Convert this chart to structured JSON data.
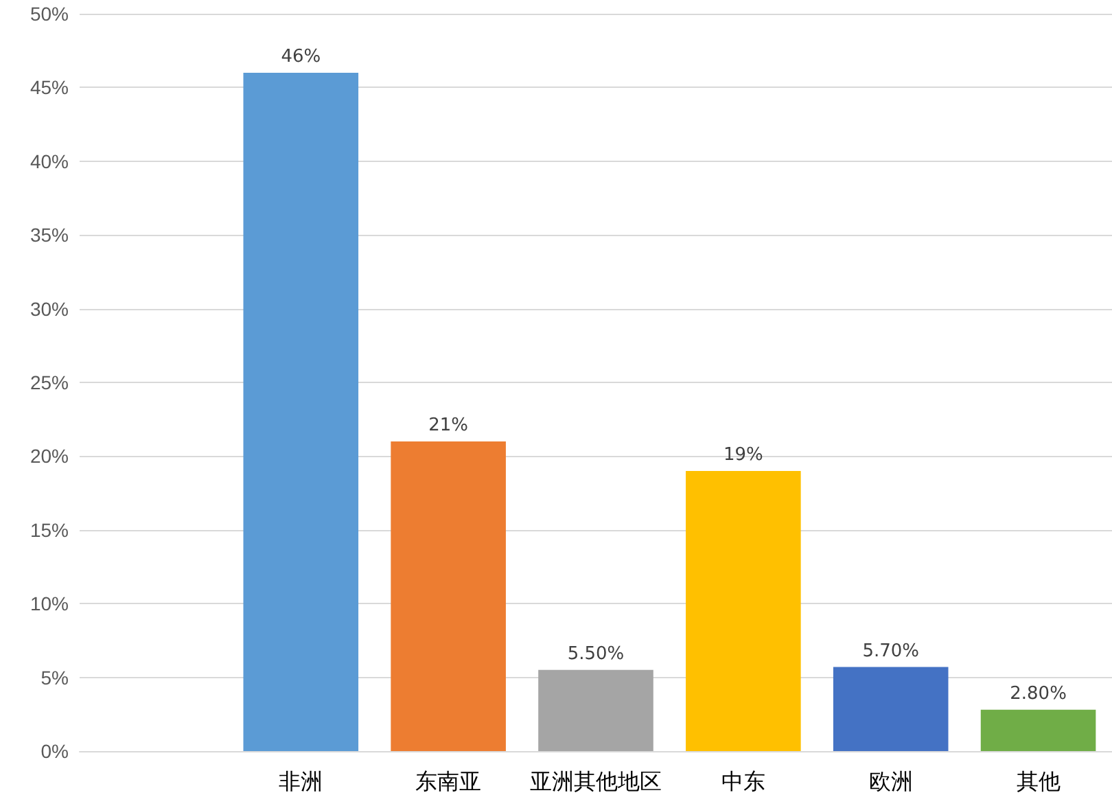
{
  "chart_data": {
    "type": "bar",
    "categories": [
      null,
      "非洲",
      "东南亚",
      "亚洲其他地区",
      "中东",
      "欧洲",
      "其他"
    ],
    "values": [
      null,
      46,
      21,
      5.5,
      19,
      5.7,
      2.8
    ],
    "colors": [
      null,
      "#5b9bd5",
      "#ed7d31",
      "#a5a5a5",
      "#ffc000",
      "#4472c4",
      "#70ad47"
    ],
    "value_labels": [
      null,
      "46%",
      "21%",
      "5.50%",
      "19%",
      "5.70%",
      "2.80%"
    ],
    "ylim": [
      0,
      50
    ],
    "yticks": [
      {
        "value": 0,
        "label": "0%"
      },
      {
        "value": 5,
        "label": "5%"
      },
      {
        "value": 10,
        "label": "10%"
      },
      {
        "value": 15,
        "label": "15%"
      },
      {
        "value": 20,
        "label": "20%"
      },
      {
        "value": 25,
        "label": "25%"
      },
      {
        "value": 30,
        "label": "30%"
      },
      {
        "value": 35,
        "label": "35%"
      },
      {
        "value": 40,
        "label": "40%"
      },
      {
        "value": 45,
        "label": "45%"
      },
      {
        "value": 50,
        "label": "50%"
      }
    ],
    "grid": "y"
  }
}
